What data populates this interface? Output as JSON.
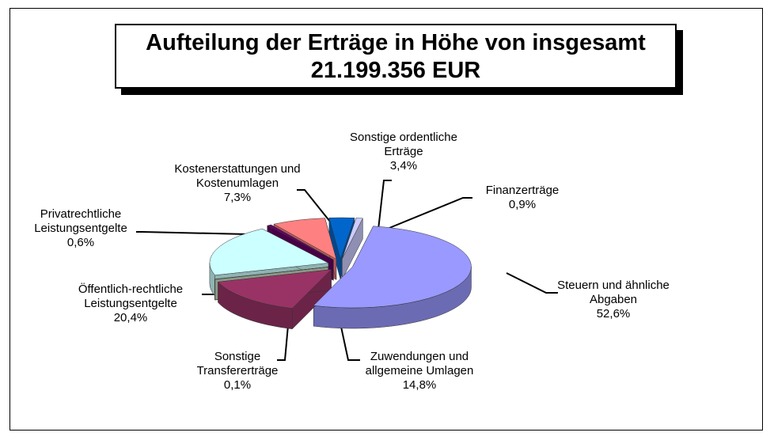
{
  "chart_data": {
    "type": "pie",
    "title": "Aufteilung der Erträge in Höhe von insgesamt 21.199.356 EUR",
    "categories": [
      "Steuern und ähnliche Abgaben",
      "Zuwendungen und allgemeine Umlagen",
      "Sonstige Transfererträge",
      "Öffentlich-rechtliche Leistungsentgelte",
      "Privatrechtliche Leistungsentgelte",
      "Kostenerstattungen und Kostenumlagen",
      "Sonstige ordentliche Erträge",
      "Finanzerträge"
    ],
    "values": [
      52.6,
      14.8,
      0.1,
      20.4,
      0.6,
      7.3,
      3.4,
      0.9
    ],
    "value_labels": [
      "52,6%",
      "14,8%",
      "0,1%",
      "20,4%",
      "0,6%",
      "7,3%",
      "3,4%",
      "0,9%"
    ],
    "colors": [
      "#9999ff",
      "#993366",
      "#c8d8c0",
      "#ccffff",
      "#660066",
      "#ff8080",
      "#0066cc",
      "#ccccff"
    ]
  }
}
